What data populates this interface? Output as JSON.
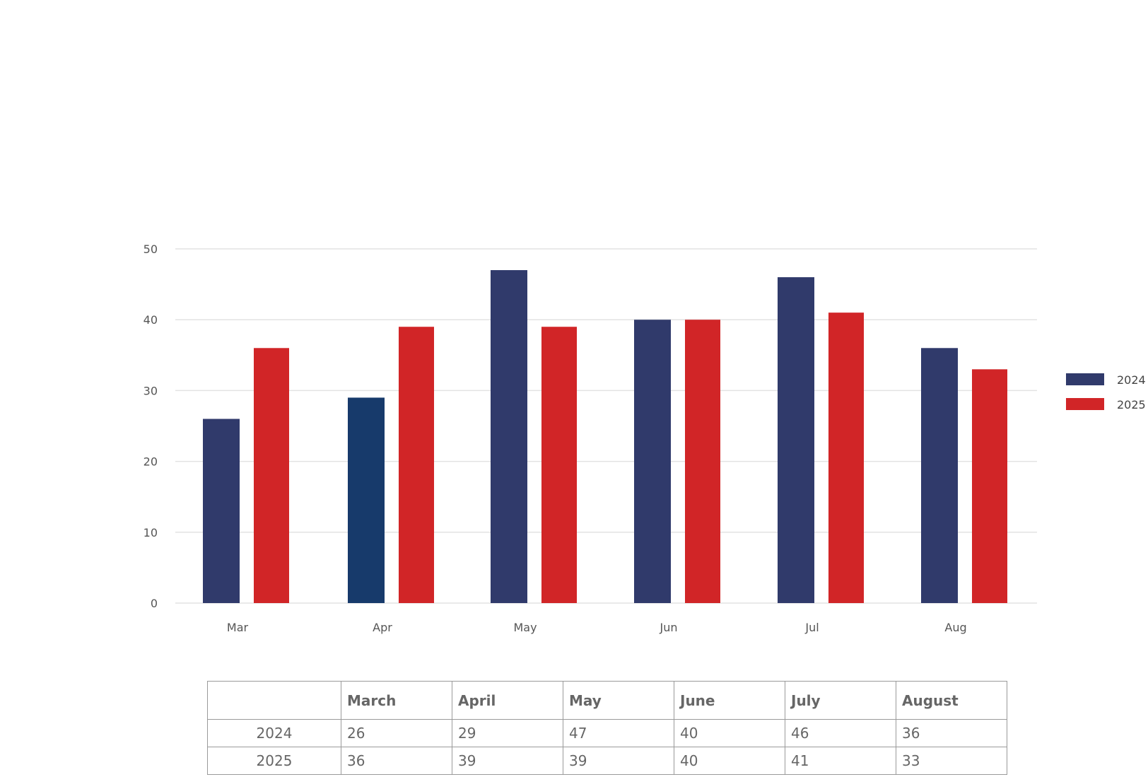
{
  "chart_data": {
    "type": "bar",
    "categories": [
      "Mar",
      "Apr",
      "May",
      "Jun",
      "Jul",
      "Aug"
    ],
    "series": [
      {
        "name": "2024",
        "values": [
          26,
          29,
          47,
          40,
          46,
          36
        ],
        "color": "#303a6b"
      },
      {
        "name": "2025",
        "values": [
          36,
          39,
          39,
          40,
          41,
          33
        ],
        "color": "#d12527"
      }
    ],
    "highlight": {
      "series": 0,
      "index": 1,
      "color": "#173a6b"
    },
    "ylim": [
      0,
      50
    ],
    "yticks": [
      0,
      10,
      20,
      30,
      40,
      50
    ],
    "grid": true,
    "legend": "right",
    "title": "",
    "xlabel": "",
    "ylabel": ""
  },
  "table": {
    "headers": [
      "",
      "March",
      "April",
      "May",
      "June",
      "July",
      "August"
    ],
    "rows": [
      {
        "label": "2024",
        "values": [
          "26",
          "29",
          "47",
          "40",
          "46",
          "36"
        ]
      },
      {
        "label": "2025",
        "values": [
          "36",
          "39",
          "39",
          "40",
          "41",
          "33"
        ]
      }
    ]
  }
}
